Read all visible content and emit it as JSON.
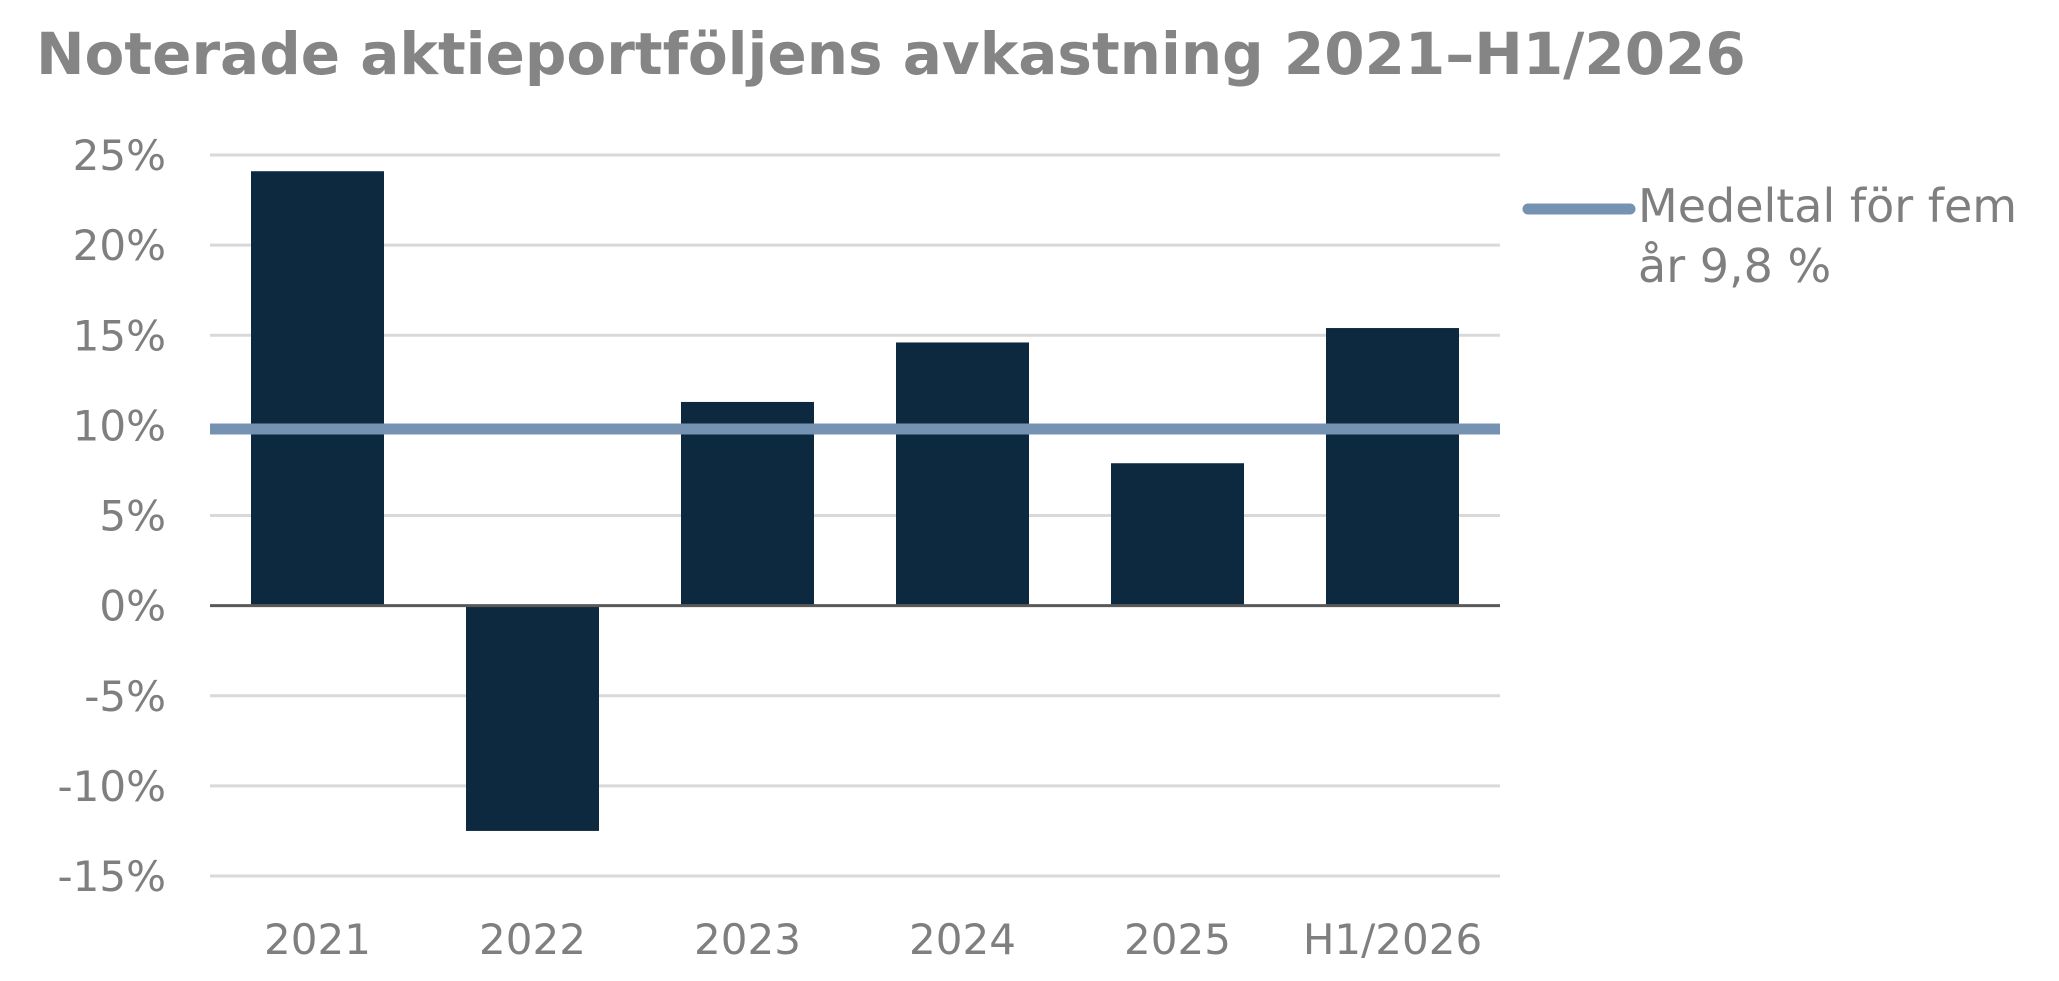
{
  "chart_data": {
    "type": "bar",
    "title": "Noterade aktieportföljens avkastning 2021–H1/2026",
    "xlabel": "",
    "ylabel": "",
    "categories": [
      "2021",
      "2022",
      "2023",
      "2024",
      "2025",
      "H1/2026"
    ],
    "series": [
      {
        "values": [
          24.1,
          -12.5,
          11.3,
          14.6,
          7.9,
          15.4
        ],
        "color": "#0d2940"
      }
    ],
    "reference_line": {
      "name": "Medeltal för fem år 9,8 %",
      "value": 9.8,
      "color": "#7592b2"
    },
    "ylim": [
      -15,
      25
    ],
    "yticks": [
      25,
      20,
      15,
      10,
      5,
      0,
      -5,
      -10,
      -15
    ],
    "ytick_labels": [
      "25%",
      "20%",
      "15%",
      "10%",
      "5%",
      "0%",
      "-5%",
      "-10%",
      "-15%"
    ],
    "grid": true,
    "legend_position": "top-right",
    "legend_lines": [
      "Medeltal för fem",
      "år 9,8 %"
    ],
    "colors": {
      "bar": "#0d2940",
      "average_line": "#7592b2",
      "grid": "#d9d9d9",
      "zero_line": "#595959",
      "text": "#7f7f7f"
    }
  }
}
